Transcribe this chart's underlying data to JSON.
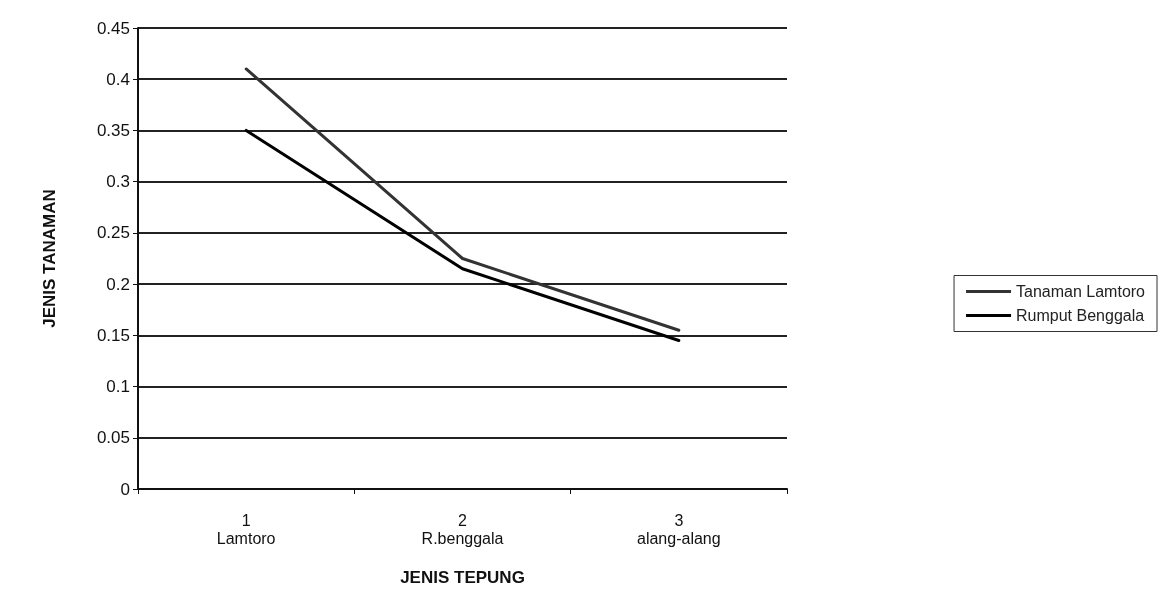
{
  "chart_data": {
    "type": "line",
    "xlabel": "JENIS TEPUNG",
    "ylabel": "JENIS TANAMAN",
    "categories": [
      "1\nLamtoro",
      "2\nR.benggala",
      "3\nalang-alang"
    ],
    "series": [
      {
        "name": "Tanaman Lamtoro",
        "color": "#333333",
        "values": [
          0.41,
          0.225,
          0.155
        ]
      },
      {
        "name": "Rumput Benggala",
        "color": "#000000",
        "values": [
          0.35,
          0.215,
          0.145
        ]
      }
    ],
    "ylim": [
      0,
      0.45
    ],
    "yticks": [
      0,
      0.05,
      0.1,
      0.15,
      0.2,
      0.25,
      0.3,
      0.35,
      0.4,
      0.45
    ],
    "grid": "y",
    "legend": "right",
    "marker": "none",
    "line_style": "solid"
  }
}
